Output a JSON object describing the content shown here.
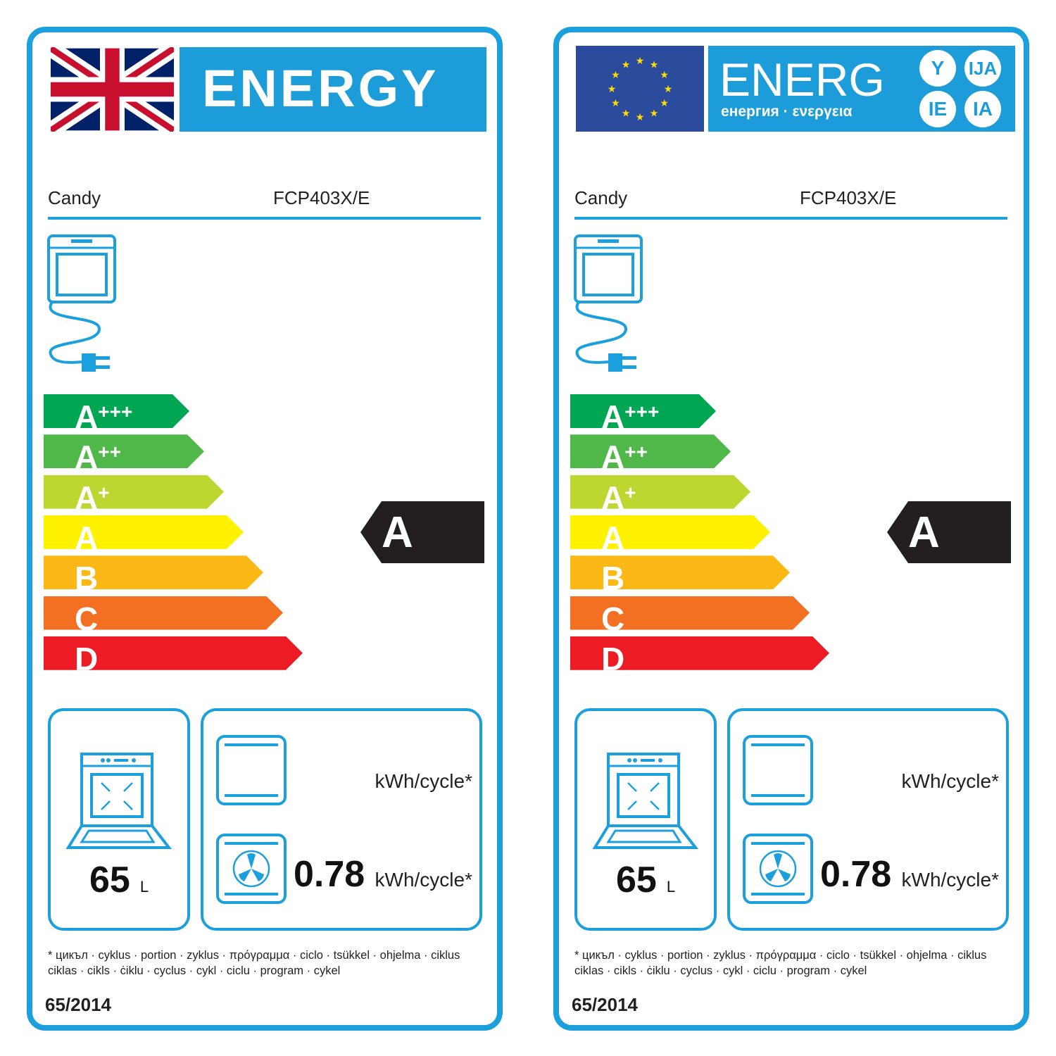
{
  "labels": [
    {
      "header": {
        "type": "uk",
        "flag_icon": "union-jack-flag-icon",
        "title": "ENERGY"
      },
      "supplier": "Candy",
      "model": "FCP403X/E",
      "scale": [
        {
          "letter": "A",
          "plus": "+++",
          "color": "#00a651"
        },
        {
          "letter": "A",
          "plus": "++",
          "color": "#50b848"
        },
        {
          "letter": "A",
          "plus": "+",
          "color": "#bed630"
        },
        {
          "letter": "A",
          "plus": "",
          "color": "#fff200"
        },
        {
          "letter": "B",
          "plus": "",
          "color": "#fcb814"
        },
        {
          "letter": "C",
          "plus": "",
          "color": "#f36f21"
        },
        {
          "letter": "D",
          "plus": "",
          "color": "#ed1c24"
        }
      ],
      "rating": "A",
      "volume": "65",
      "volume_unit": "L",
      "conventional_unit": "kWh/cycle*",
      "fan_value": "0.78",
      "fan_unit": "kWh/cycle*",
      "footnote_1": "* цикъл · cyklus · portion · zyklus · πρόγραμμα · ciclo · tsükkel · ohjelma · ciklus",
      "footnote_2": "ciklas · cikls · ċiklu · cyclus · cykl · ciclu · program · cykel",
      "regulation": "65/2014"
    },
    {
      "header": {
        "type": "eu",
        "flag_icon": "eu-flag-icon",
        "title": "ENERG",
        "subtitle": "енергия · ενεργεια",
        "suffixes": [
          "Y",
          "IJA",
          "IE",
          "IA"
        ]
      },
      "supplier": "Candy",
      "model": "FCP403X/E",
      "scale": [
        {
          "letter": "A",
          "plus": "+++",
          "color": "#00a651"
        },
        {
          "letter": "A",
          "plus": "++",
          "color": "#50b848"
        },
        {
          "letter": "A",
          "plus": "+",
          "color": "#bed630"
        },
        {
          "letter": "A",
          "plus": "",
          "color": "#fff200"
        },
        {
          "letter": "B",
          "plus": "",
          "color": "#fcb814"
        },
        {
          "letter": "C",
          "plus": "",
          "color": "#f36f21"
        },
        {
          "letter": "D",
          "plus": "",
          "color": "#ed1c24"
        }
      ],
      "rating": "A",
      "volume": "65",
      "volume_unit": "L",
      "conventional_unit": "kWh/cycle*",
      "fan_value": "0.78",
      "fan_unit": "kWh/cycle*",
      "footnote_1": "* цикъл · cyklus · portion · zyklus · πρόγραμμα · ciclo · tsükkel · ohjelma · ciklus",
      "footnote_2": "ciklas · cikls · ċiklu · cyclus · cykl · ciclu · program · cykel",
      "regulation": "65/2014"
    }
  ]
}
